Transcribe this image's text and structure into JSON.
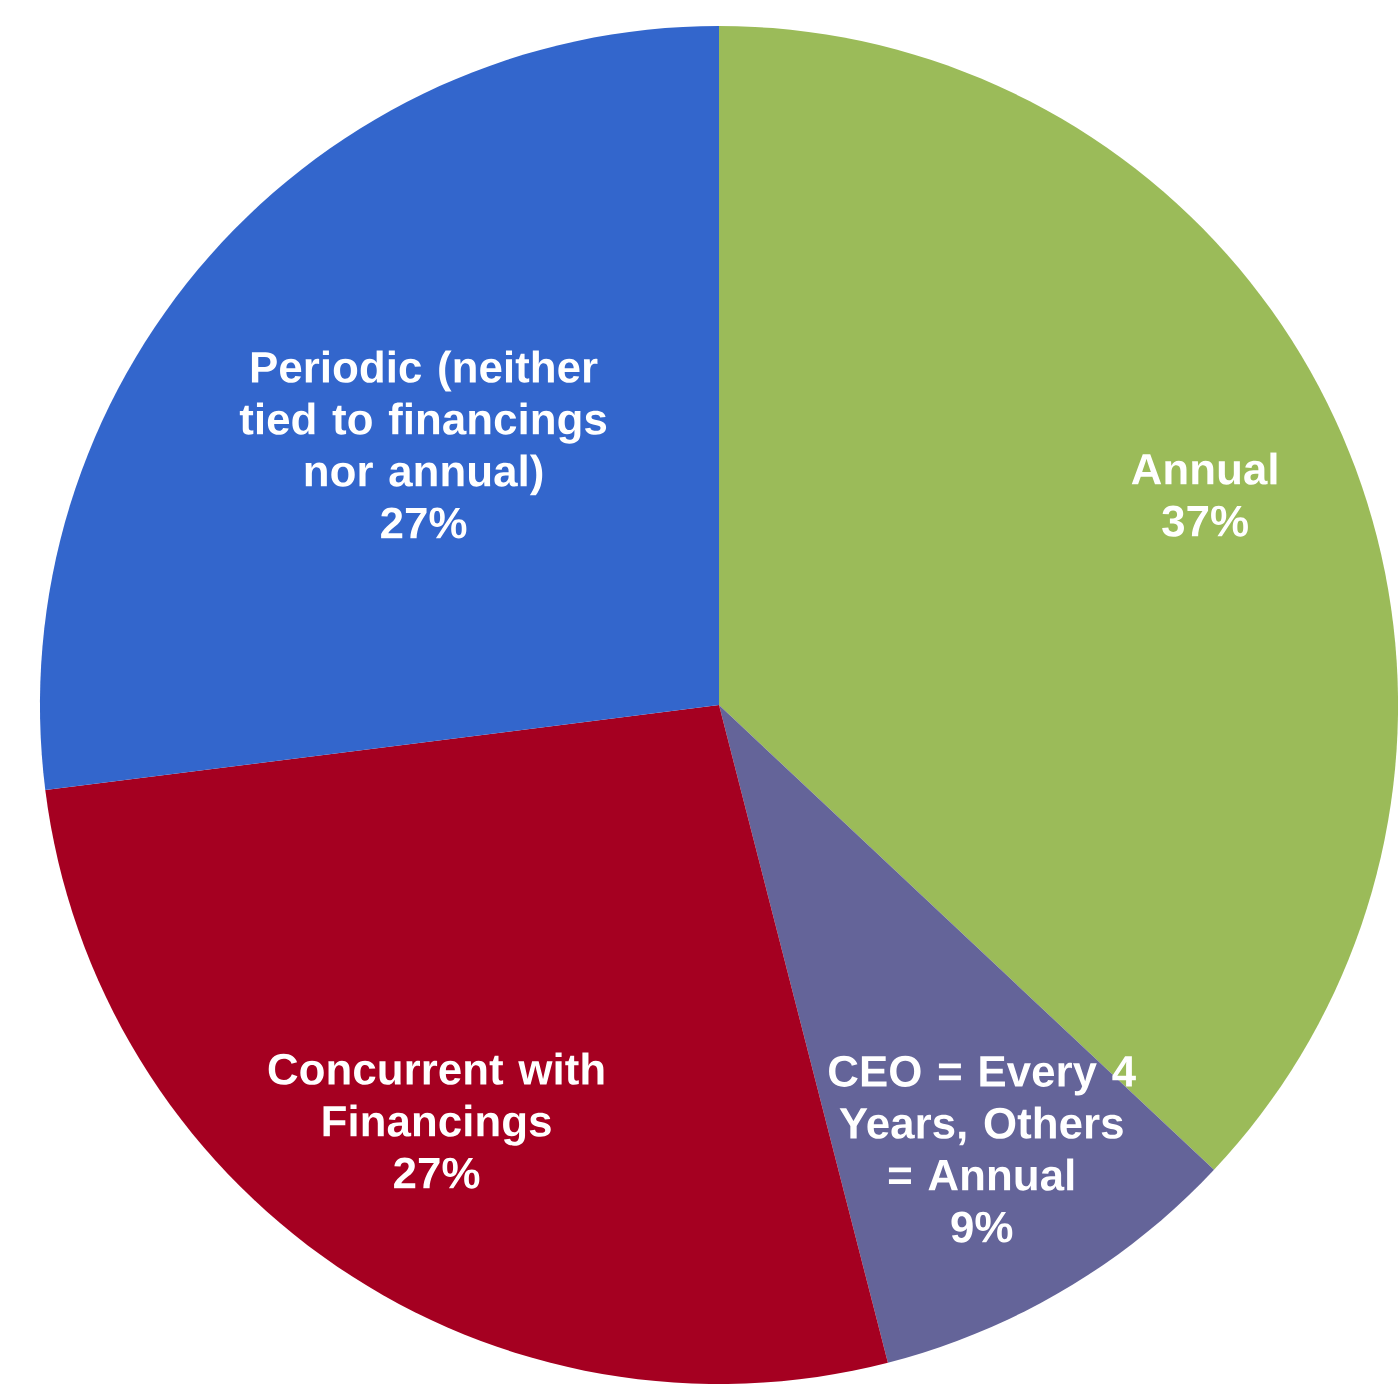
{
  "chart_data": {
    "type": "pie",
    "categories": [
      "Annual",
      "CEO = Every 4 Years, Others = Annual",
      "Concurrent with Financings",
      "Periodic (neither tied to financings nor annual)"
    ],
    "values": [
      37,
      9,
      27,
      27
    ],
    "value_labels": [
      "37%",
      "9%",
      "27%",
      "27%"
    ],
    "colors": [
      "#9bbb59",
      "#646499",
      "#a50021",
      "#3366cc"
    ]
  }
}
